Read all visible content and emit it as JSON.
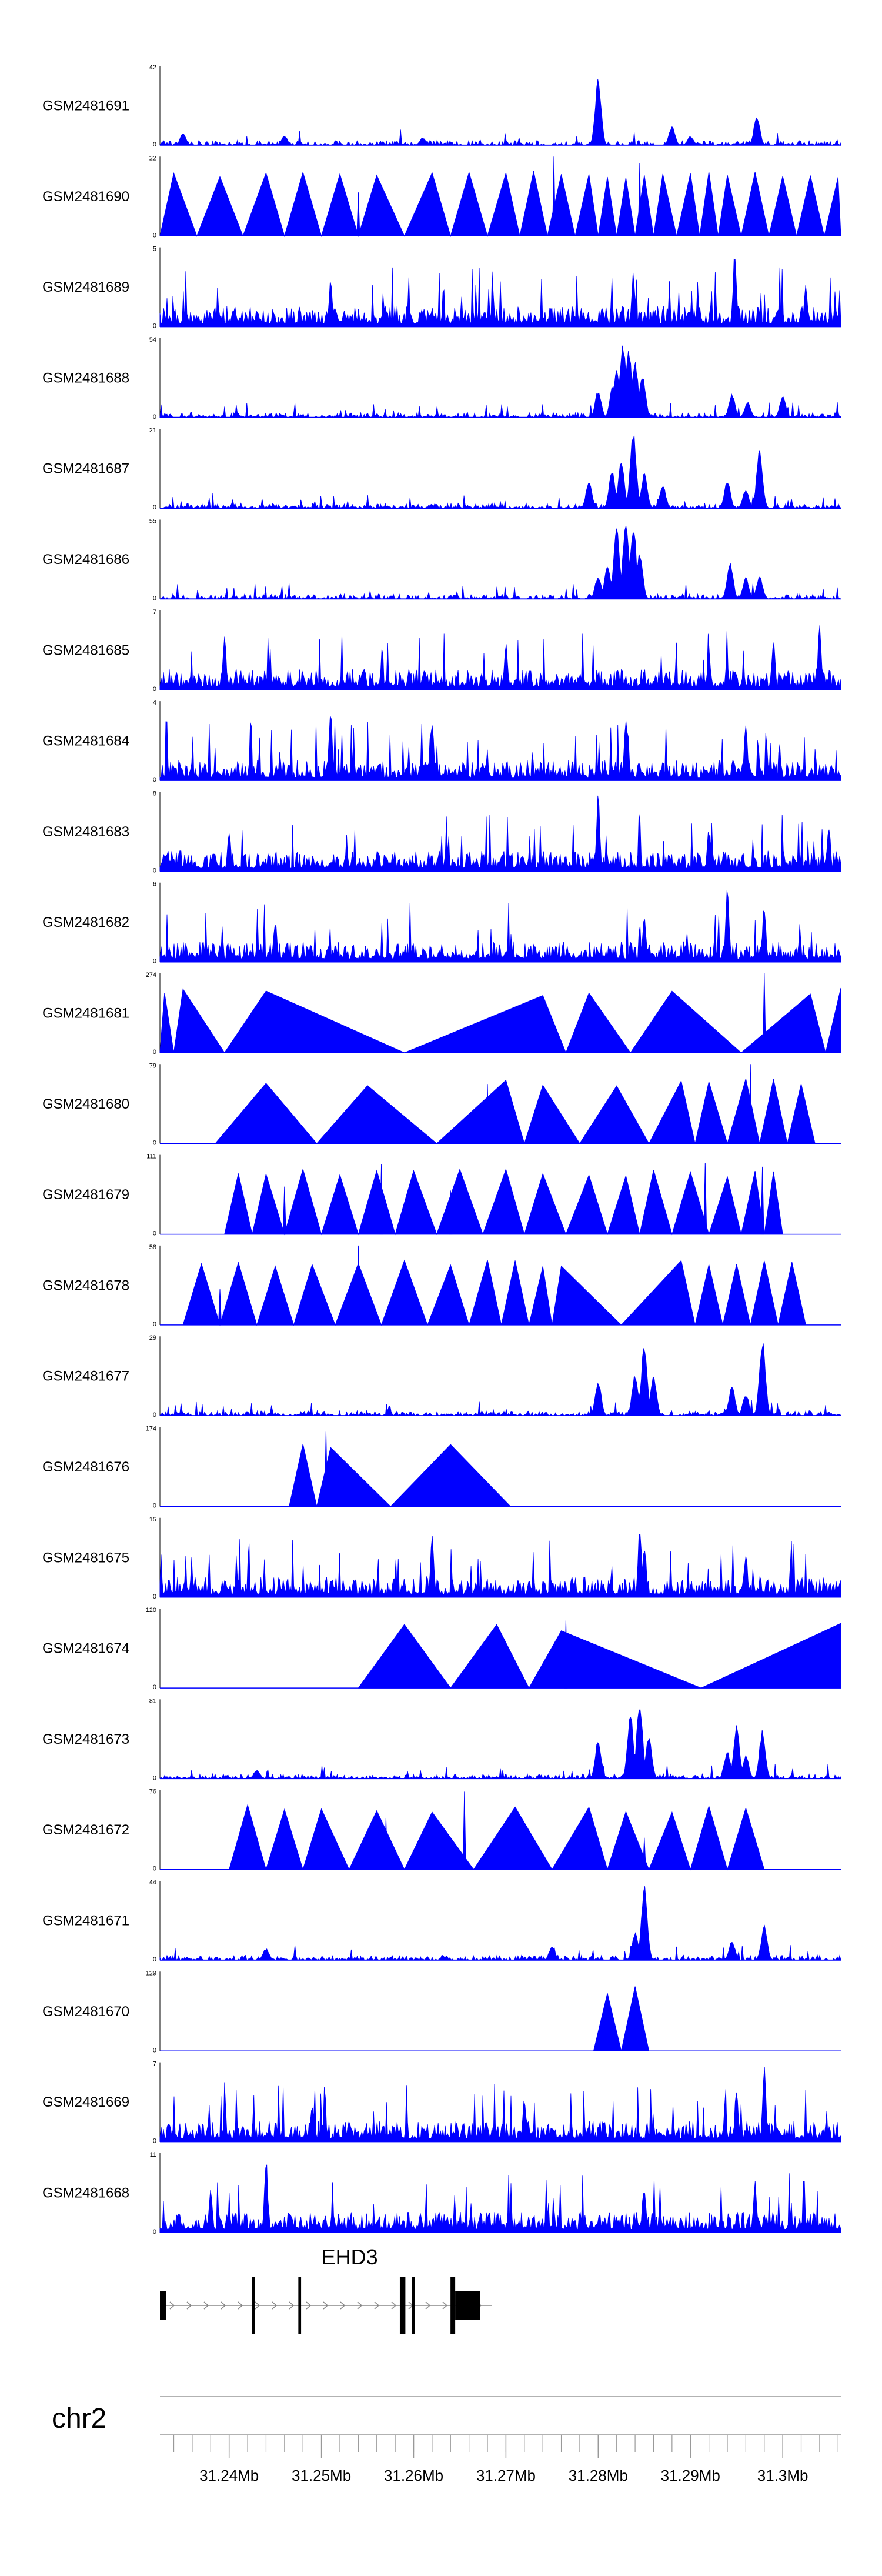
{
  "chart_data": {
    "type": "area",
    "color": "#0000ff",
    "region": {
      "chrom": "chr2",
      "start_mb": 31.2325,
      "end_mb": 31.3063
    },
    "tracks": [
      {
        "label": "GSM2481691",
        "max": "42",
        "min": "0",
        "pattern": "peaky",
        "peaks": [
          [
            31.28,
            0.85
          ],
          [
            31.288,
            0.25
          ],
          [
            31.2972,
            0.38
          ],
          [
            31.29,
            0.12
          ],
          [
            31.235,
            0.15
          ],
          [
            31.246,
            0.12
          ],
          [
            31.261,
            0.1
          ]
        ]
      },
      {
        "label": "GSM2481690",
        "max": "22",
        "min": "0",
        "pattern": "tri",
        "apexes": [
          31.234,
          31.239,
          31.244,
          31.248,
          31.252,
          31.256,
          31.262,
          31.266,
          31.27,
          31.273,
          31.276,
          31.279,
          31.281,
          31.283,
          31.285,
          31.287,
          31.29,
          31.292,
          31.294,
          31.297,
          31.3,
          31.303,
          31.306
        ],
        "spikes": [
          [
            31.2752,
            1.0
          ],
          [
            31.2845,
            0.92
          ],
          [
            31.254,
            0.55
          ],
          [
            31.2478,
            0.5
          ]
        ]
      },
      {
        "label": "GSM2481689",
        "max": "5",
        "min": "0",
        "pattern": "noise",
        "peaks": [
          [
            31.2948,
            0.95
          ],
          [
            31.2838,
            0.7
          ],
          [
            31.3025,
            0.55
          ],
          [
            31.251,
            0.6
          ]
        ]
      },
      {
        "label": "GSM2481688",
        "max": "54",
        "min": "0",
        "pattern": "peaky",
        "peaks": [
          [
            31.282,
            0.62
          ],
          [
            31.2827,
            0.95
          ],
          [
            31.2833,
            0.9
          ],
          [
            31.284,
            0.72
          ],
          [
            31.2816,
            0.42
          ],
          [
            31.2848,
            0.55
          ],
          [
            31.28,
            0.35
          ],
          [
            31.2945,
            0.3
          ],
          [
            31.2962,
            0.2
          ],
          [
            31.3,
            0.27
          ]
        ]
      },
      {
        "label": "GSM2481687",
        "max": "21",
        "min": "0",
        "pattern": "peaky",
        "peaks": [
          [
            31.2838,
            1.0
          ],
          [
            31.2825,
            0.6
          ],
          [
            31.2815,
            0.48
          ],
          [
            31.279,
            0.35
          ],
          [
            31.285,
            0.45
          ],
          [
            31.2975,
            0.75
          ],
          [
            31.294,
            0.35
          ],
          [
            31.296,
            0.25
          ],
          [
            31.287,
            0.3
          ]
        ]
      },
      {
        "label": "GSM2481686",
        "max": "55",
        "min": "0",
        "pattern": "peaky",
        "peaks": [
          [
            31.282,
            0.92
          ],
          [
            31.283,
            1.0
          ],
          [
            31.2838,
            0.95
          ],
          [
            31.2845,
            0.6
          ],
          [
            31.281,
            0.45
          ],
          [
            31.28,
            0.3
          ],
          [
            31.2943,
            0.48
          ],
          [
            31.296,
            0.28
          ],
          [
            31.2975,
            0.3
          ]
        ]
      },
      {
        "label": "GSM2481685",
        "max": "7",
        "min": "0",
        "pattern": "noise",
        "peaks": [
          [
            31.2395,
            0.7
          ],
          [
            31.304,
            0.85
          ],
          [
            31.299,
            0.65
          ],
          [
            31.27,
            0.6
          ]
        ]
      },
      {
        "label": "GSM2481684",
        "max": "4",
        "min": "0",
        "pattern": "noise",
        "peaks": [
          [
            31.251,
            0.9
          ],
          [
            31.283,
            0.85
          ],
          [
            31.262,
            0.75
          ],
          [
            31.296,
            0.75
          ]
        ]
      },
      {
        "label": "GSM2481683",
        "max": "8",
        "min": "0",
        "pattern": "noise",
        "peaks": [
          [
            31.28,
            1.0
          ],
          [
            31.305,
            0.6
          ],
          [
            31.292,
            0.55
          ],
          [
            31.24,
            0.5
          ]
        ]
      },
      {
        "label": "GSM2481682",
        "max": "6",
        "min": "0",
        "pattern": "noise",
        "peaks": [
          [
            31.294,
            0.95
          ],
          [
            31.298,
            0.75
          ],
          [
            31.245,
            0.55
          ],
          [
            31.285,
            0.6
          ]
        ]
      },
      {
        "label": "GSM2481681",
        "max": "274",
        "min": "0",
        "pattern": "tri",
        "apexes": [
          31.233,
          31.235,
          31.244,
          31.274,
          31.279,
          31.288,
          31.303,
          31.3063
        ],
        "spikes": [
          [
            31.298,
            1.0
          ],
          [
            31.2735,
            0.35
          ]
        ]
      },
      {
        "label": "GSM2481680",
        "max": "79",
        "min": "0",
        "pattern": "tri",
        "apexes": [
          31.244,
          31.255,
          31.27,
          31.274,
          31.282,
          31.289,
          31.292,
          31.296,
          31.299,
          31.302
        ],
        "spikes": [
          [
            31.2965,
            1.0
          ],
          [
            31.268,
            0.75
          ]
        ]
      },
      {
        "label": "GSM2481679",
        "max": "111",
        "min": "0",
        "pattern": "tri",
        "apexes": [
          31.241,
          31.244,
          31.248,
          31.252,
          31.256,
          31.26,
          31.265,
          31.27,
          31.274,
          31.279,
          31.283,
          31.286,
          31.29,
          31.294,
          31.297,
          31.299
        ],
        "spikes": [
          [
            31.2916,
            0.9
          ],
          [
            31.2565,
            0.88
          ],
          [
            31.2978,
            0.85
          ],
          [
            31.246,
            0.6
          ],
          [
            31.264,
            0.55
          ]
        ]
      },
      {
        "label": "GSM2481678",
        "max": "58",
        "min": "0",
        "pattern": "tri",
        "apexes": [
          31.237,
          31.241,
          31.245,
          31.249,
          31.254,
          31.259,
          31.264,
          31.268,
          31.271,
          31.274,
          31.276,
          31.289,
          31.292,
          31.295,
          31.298,
          31.301
        ],
        "spikes": [
          [
            31.254,
            1.0
          ],
          [
            31.249,
            0.5
          ],
          [
            31.239,
            0.45
          ],
          [
            31.292,
            0.5
          ]
        ]
      },
      {
        "label": "GSM2481677",
        "max": "29",
        "min": "0",
        "pattern": "peaky",
        "peaks": [
          [
            31.285,
            0.92
          ],
          [
            31.284,
            0.55
          ],
          [
            31.28,
            0.45
          ],
          [
            31.286,
            0.5
          ],
          [
            31.2978,
            1.0
          ],
          [
            31.2945,
            0.4
          ],
          [
            31.296,
            0.28
          ]
        ]
      },
      {
        "label": "GSM2481676",
        "max": "174",
        "min": "0",
        "pattern": "tri",
        "apexes": [
          31.248,
          31.251,
          31.264
        ],
        "spikes": [
          [
            31.2505,
            0.95
          ]
        ]
      },
      {
        "label": "GSM2481675",
        "max": "15",
        "min": "0",
        "pattern": "noise",
        "peaks": [
          [
            31.2845,
            0.95
          ],
          [
            31.262,
            0.8
          ],
          [
            31.296,
            0.6
          ],
          [
            31.285,
            0.7
          ]
        ]
      },
      {
        "label": "GSM2481674",
        "max": "120",
        "min": "0",
        "pattern": "tri",
        "apexes": [
          31.259,
          31.269,
          31.276,
          31.3063
        ],
        "spikes": [
          [
            31.2765,
            0.85
          ]
        ]
      },
      {
        "label": "GSM2481673",
        "max": "81",
        "min": "0",
        "pattern": "peaky",
        "peaks": [
          [
            31.2845,
            1.0
          ],
          [
            31.2835,
            0.82
          ],
          [
            31.28,
            0.5
          ],
          [
            31.2855,
            0.55
          ],
          [
            31.295,
            0.68
          ],
          [
            31.2978,
            0.62
          ],
          [
            31.294,
            0.35
          ],
          [
            31.296,
            0.3
          ],
          [
            31.243,
            0.12
          ]
        ]
      },
      {
        "label": "GSM2481672",
        "max": "76",
        "min": "0",
        "pattern": "tri",
        "apexes": [
          31.242,
          31.246,
          31.25,
          31.256,
          31.262,
          31.271,
          31.279,
          31.283,
          31.288,
          31.292,
          31.296
        ],
        "spikes": [
          [
            31.2655,
            0.98
          ],
          [
            31.257,
            0.65
          ],
          [
            31.285,
            0.4
          ]
        ]
      },
      {
        "label": "GSM2481671",
        "max": "44",
        "min": "0",
        "pattern": "peaky",
        "peaks": [
          [
            31.285,
            0.98
          ],
          [
            31.284,
            0.35
          ],
          [
            31.298,
            0.45
          ],
          [
            31.2945,
            0.25
          ],
          [
            31.275,
            0.18
          ],
          [
            31.244,
            0.15
          ]
        ]
      },
      {
        "label": "GSM2481670",
        "max": "129",
        "min": "0",
        "pattern": "tri",
        "apexes": [
          31.281,
          31.284
        ],
        "spikes": []
      },
      {
        "label": "GSM2481669",
        "max": "7",
        "min": "0",
        "pattern": "noise",
        "peaks": [
          [
            31.298,
            1.0
          ],
          [
            31.295,
            0.65
          ],
          [
            31.272,
            0.55
          ],
          [
            31.249,
            0.5
          ]
        ]
      },
      {
        "label": "GSM2481668",
        "max": "11",
        "min": "0",
        "pattern": "noise",
        "peaks": [
          [
            31.244,
            0.95
          ],
          [
            31.297,
            0.65
          ],
          [
            31.238,
            0.55
          ],
          [
            31.285,
            0.55
          ]
        ]
      }
    ],
    "gene": {
      "name": "EHD3",
      "strand": "+",
      "start_mb": 31.2325,
      "end_mb": 31.2685,
      "exons": [
        {
          "start": 31.2325,
          "end": 31.2332,
          "type": "utr"
        },
        {
          "start": 31.2425,
          "end": 31.2428,
          "type": "cds"
        },
        {
          "start": 31.2475,
          "end": 31.2478,
          "type": "cds"
        },
        {
          "start": 31.2585,
          "end": 31.2591,
          "type": "cds"
        },
        {
          "start": 31.2598,
          "end": 31.2601,
          "type": "cds"
        },
        {
          "start": 31.264,
          "end": 31.2645,
          "type": "cds"
        },
        {
          "start": 31.2645,
          "end": 31.2672,
          "type": "utr"
        }
      ]
    },
    "xaxis": {
      "chrom_label": "chr2",
      "tick_labels": [
        "31.24Mb",
        "31.25Mb",
        "31.26Mb",
        "31.27Mb",
        "31.28Mb",
        "31.29Mb",
        "31.3Mb"
      ],
      "tick_values": [
        31.24,
        31.25,
        31.26,
        31.27,
        31.28,
        31.29,
        31.3
      ],
      "minor_step_mb": 0.002
    }
  }
}
